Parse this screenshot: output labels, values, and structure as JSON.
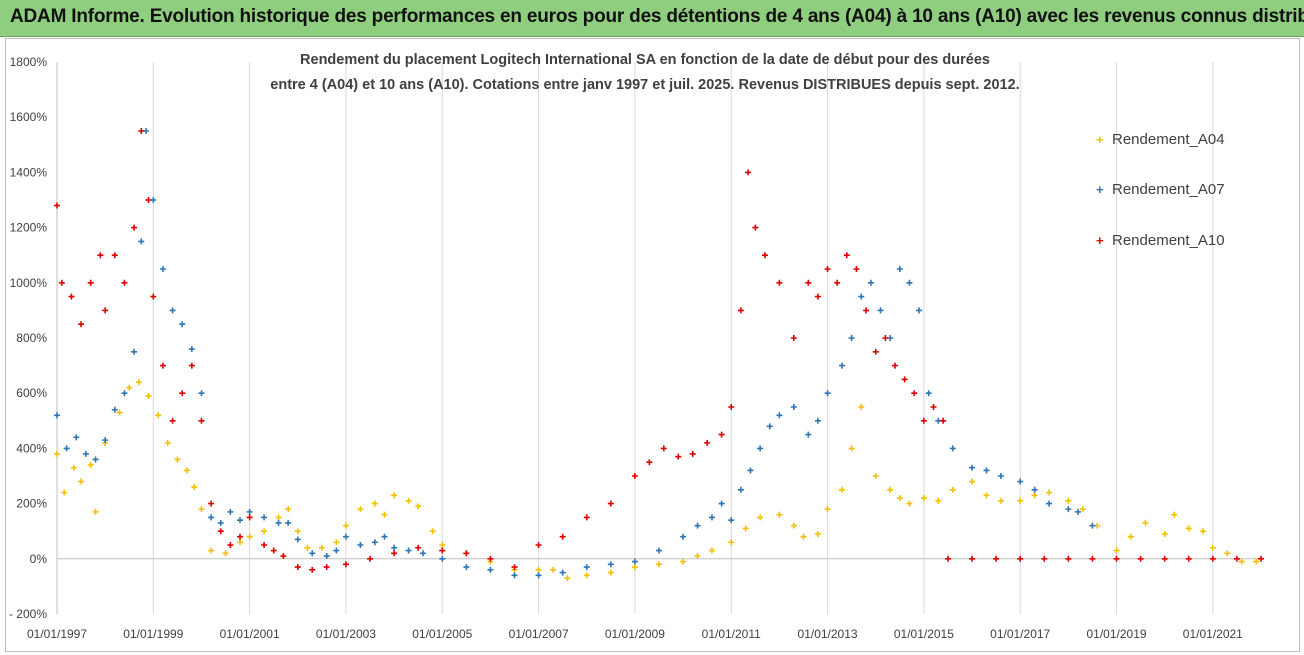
{
  "banner": {
    "title": "ADAM Informe. Evolution historique des performances en euros pour des détentions de 4 ans (A04) à 10 ans (A10) avec les revenus connus distribués"
  },
  "chart_data": {
    "type": "scatter",
    "title_line1": "Rendement du placement Logitech International SA en fonction de la date de début pour des durées",
    "title_line2": "entre 4 (A04) et 10 ans (A10). Cotations entre janv 1997 et juil. 2025. Revenus DISTRIBUES depuis sept. 2012.",
    "xlabel": "",
    "ylabel": "",
    "x_ticks": [
      "01/01/1997",
      "01/01/1999",
      "01/01/2001",
      "01/01/2003",
      "01/01/2005",
      "01/01/2007",
      "01/01/2009",
      "01/01/2011",
      "01/01/2013",
      "01/01/2015",
      "01/01/2017",
      "01/01/2019",
      "01/01/2021"
    ],
    "xlim": [
      1997.0,
      2022.0
    ],
    "ylim": [
      -200,
      1800
    ],
    "y_ticks": [
      -200,
      0,
      200,
      400,
      600,
      800,
      1000,
      1200,
      1400,
      1600,
      1800
    ],
    "y_tick_labels": [
      "- 200%",
      "0%",
      "200%",
      "400%",
      "600%",
      "800%",
      "1000%",
      "1200%",
      "1400%",
      "1600%",
      "1800%"
    ],
    "grid": "vertical",
    "legend_position": "right",
    "series": [
      {
        "name": "Rendement_A04",
        "color": "#f5c000",
        "x": [
          1997.0,
          1997.15,
          1997.35,
          1997.5,
          1997.7,
          1997.8,
          1998.0,
          1998.3,
          1998.5,
          1998.7,
          1998.9,
          1999.1,
          1999.3,
          1999.5,
          1999.7,
          1999.85,
          2000.0,
          2000.2,
          2000.5,
          2000.8,
          2001.0,
          2001.3,
          2001.6,
          2001.8,
          2002.0,
          2002.2,
          2002.5,
          2002.8,
          2003.0,
          2003.3,
          2003.6,
          2003.8,
          2004.0,
          2004.3,
          2004.5,
          2004.8,
          2005.0,
          2005.5,
          2006.0,
          2006.5,
          2007.0,
          2007.3,
          2007.6,
          2008.0,
          2008.5,
          2009.0,
          2009.5,
          2010.0,
          2010.3,
          2010.6,
          2011.0,
          2011.3,
          2011.6,
          2012.0,
          2012.3,
          2012.5,
          2012.8,
          2013.0,
          2013.3,
          2013.5,
          2013.7,
          2014.0,
          2014.3,
          2014.5,
          2014.7,
          2015.0,
          2015.3,
          2015.6,
          2016.0,
          2016.3,
          2016.6,
          2017.0,
          2017.3,
          2017.6,
          2018.0,
          2018.3,
          2018.6,
          2019.0,
          2019.3,
          2019.6,
          2020.0,
          2020.2,
          2020.5,
          2020.8,
          2021.0,
          2021.3,
          2021.6,
          2021.9
        ],
        "y": [
          380,
          240,
          330,
          280,
          340,
          170,
          420,
          530,
          620,
          640,
          590,
          520,
          420,
          360,
          320,
          260,
          180,
          30,
          20,
          60,
          80,
          100,
          150,
          180,
          100,
          40,
          40,
          60,
          120,
          180,
          200,
          160,
          230,
          210,
          190,
          100,
          50,
          20,
          -10,
          -40,
          -40,
          -40,
          -70,
          -60,
          -50,
          -30,
          -20,
          -10,
          10,
          30,
          60,
          110,
          150,
          160,
          120,
          80,
          90,
          180,
          250,
          400,
          550,
          300,
          250,
          220,
          200,
          220,
          210,
          250,
          280,
          230,
          210,
          210,
          230,
          240,
          210,
          180,
          120,
          30,
          80,
          130,
          90,
          160,
          110,
          100,
          40,
          20,
          -10,
          -10
        ]
      },
      {
        "name": "Rendement_A07",
        "color": "#2e75b6",
        "x": [
          1997.0,
          1997.2,
          1997.4,
          1997.6,
          1997.8,
          1998.0,
          1998.2,
          1998.4,
          1998.6,
          1998.75,
          1998.85,
          1999.0,
          1999.2,
          1999.4,
          1999.6,
          1999.8,
          2000.0,
          2000.2,
          2000.4,
          2000.6,
          2000.8,
          2001.0,
          2001.3,
          2001.6,
          2001.8,
          2002.0,
          2002.3,
          2002.6,
          2002.8,
          2003.0,
          2003.3,
          2003.6,
          2003.8,
          2004.0,
          2004.3,
          2004.6,
          2005.0,
          2005.5,
          2006.0,
          2006.5,
          2007.0,
          2007.5,
          2008.0,
          2008.5,
          2009.0,
          2009.5,
          2010.0,
          2010.3,
          2010.6,
          2010.8,
          2011.0,
          2011.2,
          2011.4,
          2011.6,
          2011.8,
          2012.0,
          2012.3,
          2012.6,
          2012.8,
          2013.0,
          2013.3,
          2013.5,
          2013.7,
          2013.9,
          2014.1,
          2014.3,
          2014.5,
          2014.7,
          2014.9,
          2015.1,
          2015.3,
          2015.6,
          2016.0,
          2016.3,
          2016.6,
          2017.0,
          2017.3,
          2017.6,
          2018.0,
          2018.2,
          2018.5
        ],
        "y": [
          520,
          400,
          440,
          380,
          360,
          430,
          540,
          600,
          750,
          1150,
          1550,
          1300,
          1050,
          900,
          850,
          760,
          600,
          150,
          130,
          170,
          140,
          170,
          150,
          130,
          130,
          70,
          20,
          10,
          30,
          80,
          50,
          60,
          80,
          40,
          30,
          20,
          0,
          -30,
          -40,
          -60,
          -60,
          -50,
          -30,
          -20,
          -10,
          30,
          80,
          120,
          150,
          200,
          140,
          250,
          320,
          400,
          480,
          520,
          550,
          450,
          500,
          600,
          700,
          800,
          950,
          1000,
          900,
          800,
          1050,
          1000,
          900,
          600,
          500,
          400,
          330,
          320,
          300,
          280,
          250,
          200,
          180,
          170,
          120
        ]
      },
      {
        "name": "Rendement_A10",
        "color": "#e00000",
        "x": [
          1997.0,
          1997.1,
          1997.3,
          1997.5,
          1997.7,
          1997.9,
          1998.0,
          1998.2,
          1998.4,
          1998.6,
          1998.75,
          1998.9,
          1999.0,
          1999.2,
          1999.4,
          1999.6,
          1999.8,
          2000.0,
          2000.2,
          2000.4,
          2000.6,
          2000.8,
          2001.0,
          2001.3,
          2001.5,
          2001.7,
          2002.0,
          2002.3,
          2002.6,
          2003.0,
          2003.5,
          2004.0,
          2004.5,
          2005.0,
          2005.5,
          2006.0,
          2006.5,
          2007.0,
          2007.5,
          2008.0,
          2008.5,
          2009.0,
          2009.3,
          2009.6,
          2009.9,
          2010.2,
          2010.5,
          2010.8,
          2011.0,
          2011.2,
          2011.35,
          2011.5,
          2011.7,
          2012.0,
          2012.3,
          2012.6,
          2012.8,
          2013.0,
          2013.2,
          2013.4,
          2013.6,
          2013.8,
          2014.0,
          2014.2,
          2014.4,
          2014.6,
          2014.8,
          2015.0,
          2015.2,
          2015.4,
          2015.5,
          2016.0,
          2016.5,
          2017.0,
          2017.5,
          2018.0,
          2018.5,
          2019.0,
          2019.5,
          2020.0,
          2020.5,
          2021.0,
          2021.5,
          2022.0
        ],
        "y": [
          1280,
          1000,
          950,
          850,
          1000,
          1100,
          900,
          1100,
          1000,
          1200,
          1550,
          1300,
          950,
          700,
          500,
          600,
          700,
          500,
          200,
          100,
          50,
          80,
          150,
          50,
          30,
          10,
          -30,
          -40,
          -30,
          -20,
          0,
          20,
          40,
          30,
          20,
          0,
          -30,
          50,
          80,
          150,
          200,
          300,
          350,
          400,
          370,
          380,
          420,
          450,
          550,
          900,
          1400,
          1200,
          1100,
          1000,
          800,
          1000,
          950,
          1050,
          1000,
          1100,
          1050,
          900,
          750,
          800,
          700,
          650,
          600,
          500,
          550,
          500,
          0,
          0,
          0,
          0,
          0,
          0,
          0,
          0,
          0,
          0,
          0,
          0,
          0,
          0
        ]
      }
    ]
  }
}
